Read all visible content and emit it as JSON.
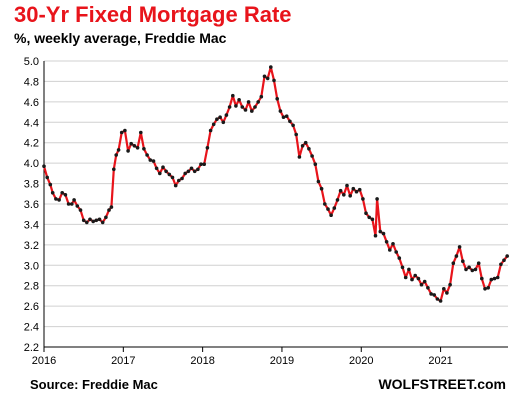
{
  "header": {
    "title": "30-Yr Fixed Mortgage Rate",
    "subtitle": "%, weekly average, Freddie Mac"
  },
  "footer": {
    "source": "Source: Freddie Mac",
    "brand": "WOLFSTREET.com"
  },
  "colors": {
    "title": "#e8141b",
    "line": "#e8141b",
    "marker": "#1a1a1a",
    "grid": "#d0d0d0",
    "axis": "#000000"
  },
  "chart_data": {
    "type": "line",
    "title": "30-Yr Fixed Mortgage Rate",
    "subtitle": "%, weekly average, Freddie Mac",
    "xlabel": "",
    "ylabel": "",
    "xlim": [
      2016.0,
      2021.85
    ],
    "ylim": [
      2.2,
      5.0
    ],
    "yticks": [
      "2.2",
      "2.4",
      "2.6",
      "2.8",
      "3.0",
      "3.2",
      "3.4",
      "3.6",
      "3.8",
      "4.0",
      "4.2",
      "4.4",
      "4.6",
      "4.8",
      "5.0"
    ],
    "xticks": [
      "2016",
      "2017",
      "2018",
      "2019",
      "2020",
      "2021"
    ],
    "grid": true,
    "legend": "none",
    "series": [
      {
        "points": [
          [
            2016.0,
            3.97
          ],
          [
            2016.04,
            3.86
          ],
          [
            2016.08,
            3.79
          ],
          [
            2016.11,
            3.71
          ],
          [
            2016.15,
            3.65
          ],
          [
            2016.19,
            3.64
          ],
          [
            2016.23,
            3.71
          ],
          [
            2016.27,
            3.69
          ],
          [
            2016.31,
            3.6
          ],
          [
            2016.35,
            3.6
          ],
          [
            2016.38,
            3.64
          ],
          [
            2016.42,
            3.58
          ],
          [
            2016.46,
            3.54
          ],
          [
            2016.5,
            3.44
          ],
          [
            2016.54,
            3.42
          ],
          [
            2016.58,
            3.45
          ],
          [
            2016.62,
            3.43
          ],
          [
            2016.66,
            3.44
          ],
          [
            2016.7,
            3.45
          ],
          [
            2016.74,
            3.42
          ],
          [
            2016.78,
            3.47
          ],
          [
            2016.82,
            3.54
          ],
          [
            2016.85,
            3.57
          ],
          [
            2016.88,
            3.94
          ],
          [
            2016.91,
            4.08
          ],
          [
            2016.94,
            4.13
          ],
          [
            2016.98,
            4.3
          ],
          [
            2017.02,
            4.32
          ],
          [
            2017.06,
            4.12
          ],
          [
            2017.1,
            4.19
          ],
          [
            2017.14,
            4.17
          ],
          [
            2017.18,
            4.15
          ],
          [
            2017.22,
            4.3
          ],
          [
            2017.26,
            4.14
          ],
          [
            2017.3,
            4.08
          ],
          [
            2017.34,
            4.03
          ],
          [
            2017.38,
            4.02
          ],
          [
            2017.42,
            3.95
          ],
          [
            2017.46,
            3.9
          ],
          [
            2017.5,
            3.96
          ],
          [
            2017.54,
            3.92
          ],
          [
            2017.58,
            3.89
          ],
          [
            2017.62,
            3.86
          ],
          [
            2017.66,
            3.78
          ],
          [
            2017.7,
            3.83
          ],
          [
            2017.74,
            3.85
          ],
          [
            2017.78,
            3.9
          ],
          [
            2017.82,
            3.92
          ],
          [
            2017.86,
            3.95
          ],
          [
            2017.9,
            3.92
          ],
          [
            2017.94,
            3.94
          ],
          [
            2017.98,
            3.99
          ],
          [
            2018.02,
            3.99
          ],
          [
            2018.06,
            4.15
          ],
          [
            2018.1,
            4.32
          ],
          [
            2018.14,
            4.38
          ],
          [
            2018.18,
            4.43
          ],
          [
            2018.22,
            4.45
          ],
          [
            2018.26,
            4.4
          ],
          [
            2018.3,
            4.47
          ],
          [
            2018.34,
            4.55
          ],
          [
            2018.38,
            4.66
          ],
          [
            2018.42,
            4.56
          ],
          [
            2018.46,
            4.62
          ],
          [
            2018.5,
            4.55
          ],
          [
            2018.54,
            4.52
          ],
          [
            2018.58,
            4.6
          ],
          [
            2018.62,
            4.51
          ],
          [
            2018.66,
            4.55
          ],
          [
            2018.7,
            4.6
          ],
          [
            2018.74,
            4.65
          ],
          [
            2018.78,
            4.85
          ],
          [
            2018.82,
            4.83
          ],
          [
            2018.86,
            4.94
          ],
          [
            2018.9,
            4.81
          ],
          [
            2018.94,
            4.63
          ],
          [
            2018.98,
            4.51
          ],
          [
            2019.02,
            4.45
          ],
          [
            2019.06,
            4.46
          ],
          [
            2019.1,
            4.41
          ],
          [
            2019.14,
            4.37
          ],
          [
            2019.18,
            4.28
          ],
          [
            2019.22,
            4.06
          ],
          [
            2019.26,
            4.17
          ],
          [
            2019.3,
            4.2
          ],
          [
            2019.34,
            4.14
          ],
          [
            2019.38,
            4.07
          ],
          [
            2019.42,
            3.99
          ],
          [
            2019.46,
            3.82
          ],
          [
            2019.5,
            3.75
          ],
          [
            2019.54,
            3.6
          ],
          [
            2019.58,
            3.55
          ],
          [
            2019.62,
            3.49
          ],
          [
            2019.66,
            3.56
          ],
          [
            2019.7,
            3.64
          ],
          [
            2019.74,
            3.73
          ],
          [
            2019.78,
            3.69
          ],
          [
            2019.82,
            3.78
          ],
          [
            2019.86,
            3.68
          ],
          [
            2019.9,
            3.75
          ],
          [
            2019.94,
            3.72
          ],
          [
            2019.98,
            3.74
          ],
          [
            2020.02,
            3.65
          ],
          [
            2020.06,
            3.51
          ],
          [
            2020.1,
            3.47
          ],
          [
            2020.14,
            3.45
          ],
          [
            2020.18,
            3.29
          ],
          [
            2020.2,
            3.65
          ],
          [
            2020.24,
            3.33
          ],
          [
            2020.28,
            3.31
          ],
          [
            2020.32,
            3.23
          ],
          [
            2020.36,
            3.15
          ],
          [
            2020.4,
            3.21
          ],
          [
            2020.44,
            3.13
          ],
          [
            2020.48,
            3.07
          ],
          [
            2020.52,
            2.98
          ],
          [
            2020.56,
            2.88
          ],
          [
            2020.6,
            2.96
          ],
          [
            2020.64,
            2.86
          ],
          [
            2020.68,
            2.9
          ],
          [
            2020.72,
            2.87
          ],
          [
            2020.76,
            2.81
          ],
          [
            2020.8,
            2.84
          ],
          [
            2020.84,
            2.78
          ],
          [
            2020.88,
            2.72
          ],
          [
            2020.92,
            2.71
          ],
          [
            2020.96,
            2.67
          ],
          [
            2021.0,
            2.65
          ],
          [
            2021.04,
            2.77
          ],
          [
            2021.08,
            2.73
          ],
          [
            2021.12,
            2.81
          ],
          [
            2021.16,
            3.02
          ],
          [
            2021.2,
            3.09
          ],
          [
            2021.24,
            3.18
          ],
          [
            2021.28,
            3.04
          ],
          [
            2021.32,
            2.96
          ],
          [
            2021.36,
            2.98
          ],
          [
            2021.4,
            2.95
          ],
          [
            2021.44,
            2.96
          ],
          [
            2021.48,
            3.02
          ],
          [
            2021.52,
            2.87
          ],
          [
            2021.56,
            2.77
          ],
          [
            2021.6,
            2.78
          ],
          [
            2021.64,
            2.86
          ],
          [
            2021.68,
            2.87
          ],
          [
            2021.72,
            2.88
          ],
          [
            2021.76,
            3.01
          ],
          [
            2021.8,
            3.05
          ],
          [
            2021.84,
            3.09
          ]
        ]
      }
    ]
  }
}
